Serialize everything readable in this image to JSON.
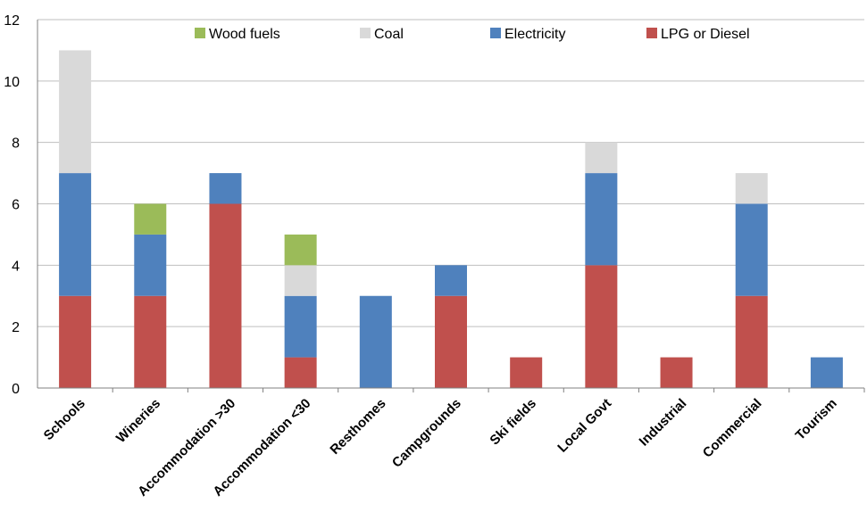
{
  "chart_data": {
    "type": "bar",
    "stacked": true,
    "title": "",
    "xlabel": "",
    "ylabel": "",
    "ylim": [
      0,
      12
    ],
    "yticks": [
      0,
      2,
      4,
      6,
      8,
      10,
      12
    ],
    "grid": "horizontal",
    "legend_position": "top",
    "categories": [
      "Schools",
      "Wineries",
      "Accommodation >30",
      "Accommodation <30",
      "Resthomes",
      "Campgrounds",
      "Ski fields",
      "Local Govt",
      "Industrial",
      "Commercial",
      "Tourism"
    ],
    "series": [
      {
        "name": "LPG or Diesel",
        "color": "#C0504D",
        "values": [
          3,
          3,
          6,
          1,
          0,
          3,
          1,
          4,
          1,
          3,
          0
        ]
      },
      {
        "name": "Electricity",
        "color": "#4F81BD",
        "values": [
          4,
          2,
          1,
          2,
          3,
          1,
          0,
          3,
          0,
          3,
          1
        ]
      },
      {
        "name": "Coal",
        "color": "#D9D9D9",
        "values": [
          4,
          0,
          0,
          1,
          0,
          0,
          0,
          1,
          0,
          1,
          0
        ]
      },
      {
        "name": "Wood fuels",
        "color": "#9BBB59",
        "values": [
          0,
          1,
          0,
          1,
          0,
          0,
          0,
          0,
          0,
          0,
          0
        ]
      }
    ],
    "legend_order": [
      "Wood fuels",
      "Coal",
      "Electricity",
      "LPG or Diesel"
    ]
  }
}
